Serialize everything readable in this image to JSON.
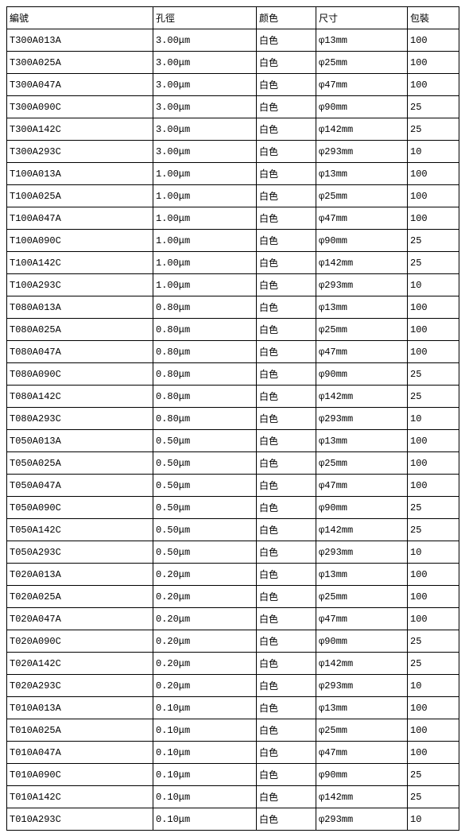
{
  "table": {
    "columns": [
      "編號",
      "孔徑",
      "颜色",
      "尺寸",
      "包裝"
    ],
    "rows": [
      [
        "T300A013A",
        "3.00μm",
        "白色",
        "φ13mm",
        "100"
      ],
      [
        "T300A025A",
        "3.00μm",
        "白色",
        "φ25mm",
        "100"
      ],
      [
        "T300A047A",
        "3.00μm",
        "白色",
        "φ47mm",
        "100"
      ],
      [
        "T300A090C",
        "3.00μm",
        "白色",
        "φ90mm",
        "25"
      ],
      [
        "T300A142C",
        "3.00μm",
        "白色",
        "φ142mm",
        "25"
      ],
      [
        "T300A293C",
        "3.00μm",
        "白色",
        "φ293mm",
        "10"
      ],
      [
        "T100A013A",
        "1.00μm",
        "白色",
        "φ13mm",
        "100"
      ],
      [
        "T100A025A",
        "1.00μm",
        "白色",
        "φ25mm",
        "100"
      ],
      [
        "T100A047A",
        "1.00μm",
        "白色",
        "φ47mm",
        "100"
      ],
      [
        "T100A090C",
        "1.00μm",
        "白色",
        "φ90mm",
        "25"
      ],
      [
        "T100A142C",
        "1.00μm",
        "白色",
        "φ142mm",
        "25"
      ],
      [
        "T100A293C",
        "1.00μm",
        "白色",
        "φ293mm",
        "10"
      ],
      [
        "T080A013A",
        "0.80μm",
        "白色",
        "φ13mm",
        "100"
      ],
      [
        "T080A025A",
        "0.80μm",
        "白色",
        "φ25mm",
        "100"
      ],
      [
        "T080A047A",
        "0.80μm",
        "白色",
        "φ47mm",
        "100"
      ],
      [
        "T080A090C",
        "0.80μm",
        "白色",
        "φ90mm",
        "25"
      ],
      [
        "T080A142C",
        "0.80μm",
        "白色",
        "φ142mm",
        "25"
      ],
      [
        "T080A293C",
        "0.80μm",
        "白色",
        "φ293mm",
        "10"
      ],
      [
        "T050A013A",
        "0.50μm",
        "白色",
        "φ13mm",
        "100"
      ],
      [
        "T050A025A",
        "0.50μm",
        "白色",
        "φ25mm",
        "100"
      ],
      [
        "T050A047A",
        "0.50μm",
        "白色",
        "φ47mm",
        "100"
      ],
      [
        "T050A090C",
        "0.50μm",
        "白色",
        "φ90mm",
        "25"
      ],
      [
        "T050A142C",
        "0.50μm",
        "白色",
        "φ142mm",
        "25"
      ],
      [
        "T050A293C",
        "0.50μm",
        "白色",
        "φ293mm",
        "10"
      ],
      [
        "T020A013A",
        "0.20μm",
        "白色",
        "φ13mm",
        "100"
      ],
      [
        "T020A025A",
        "0.20μm",
        "白色",
        "φ25mm",
        "100"
      ],
      [
        "T020A047A",
        "0.20μm",
        "白色",
        "φ47mm",
        "100"
      ],
      [
        "T020A090C",
        "0.20μm",
        "白色",
        "φ90mm",
        "25"
      ],
      [
        "T020A142C",
        "0.20μm",
        "白色",
        "φ142mm",
        "25"
      ],
      [
        "T020A293C",
        "0.20μm",
        "白色",
        "φ293mm",
        "10"
      ],
      [
        "T010A013A",
        "0.10μm",
        "白色",
        "φ13mm",
        "100"
      ],
      [
        "T010A025A",
        "0.10μm",
        "白色",
        "φ25mm",
        "100"
      ],
      [
        "T010A047A",
        "0.10μm",
        "白色",
        "φ47mm",
        "100"
      ],
      [
        "T010A090C",
        "0.10μm",
        "白色",
        "φ90mm",
        "25"
      ],
      [
        "T010A142C",
        "0.10μm",
        "白色",
        "φ142mm",
        "25"
      ],
      [
        "T010A293C",
        "0.10μm",
        "白色",
        "φ293mm",
        "10"
      ]
    ]
  }
}
